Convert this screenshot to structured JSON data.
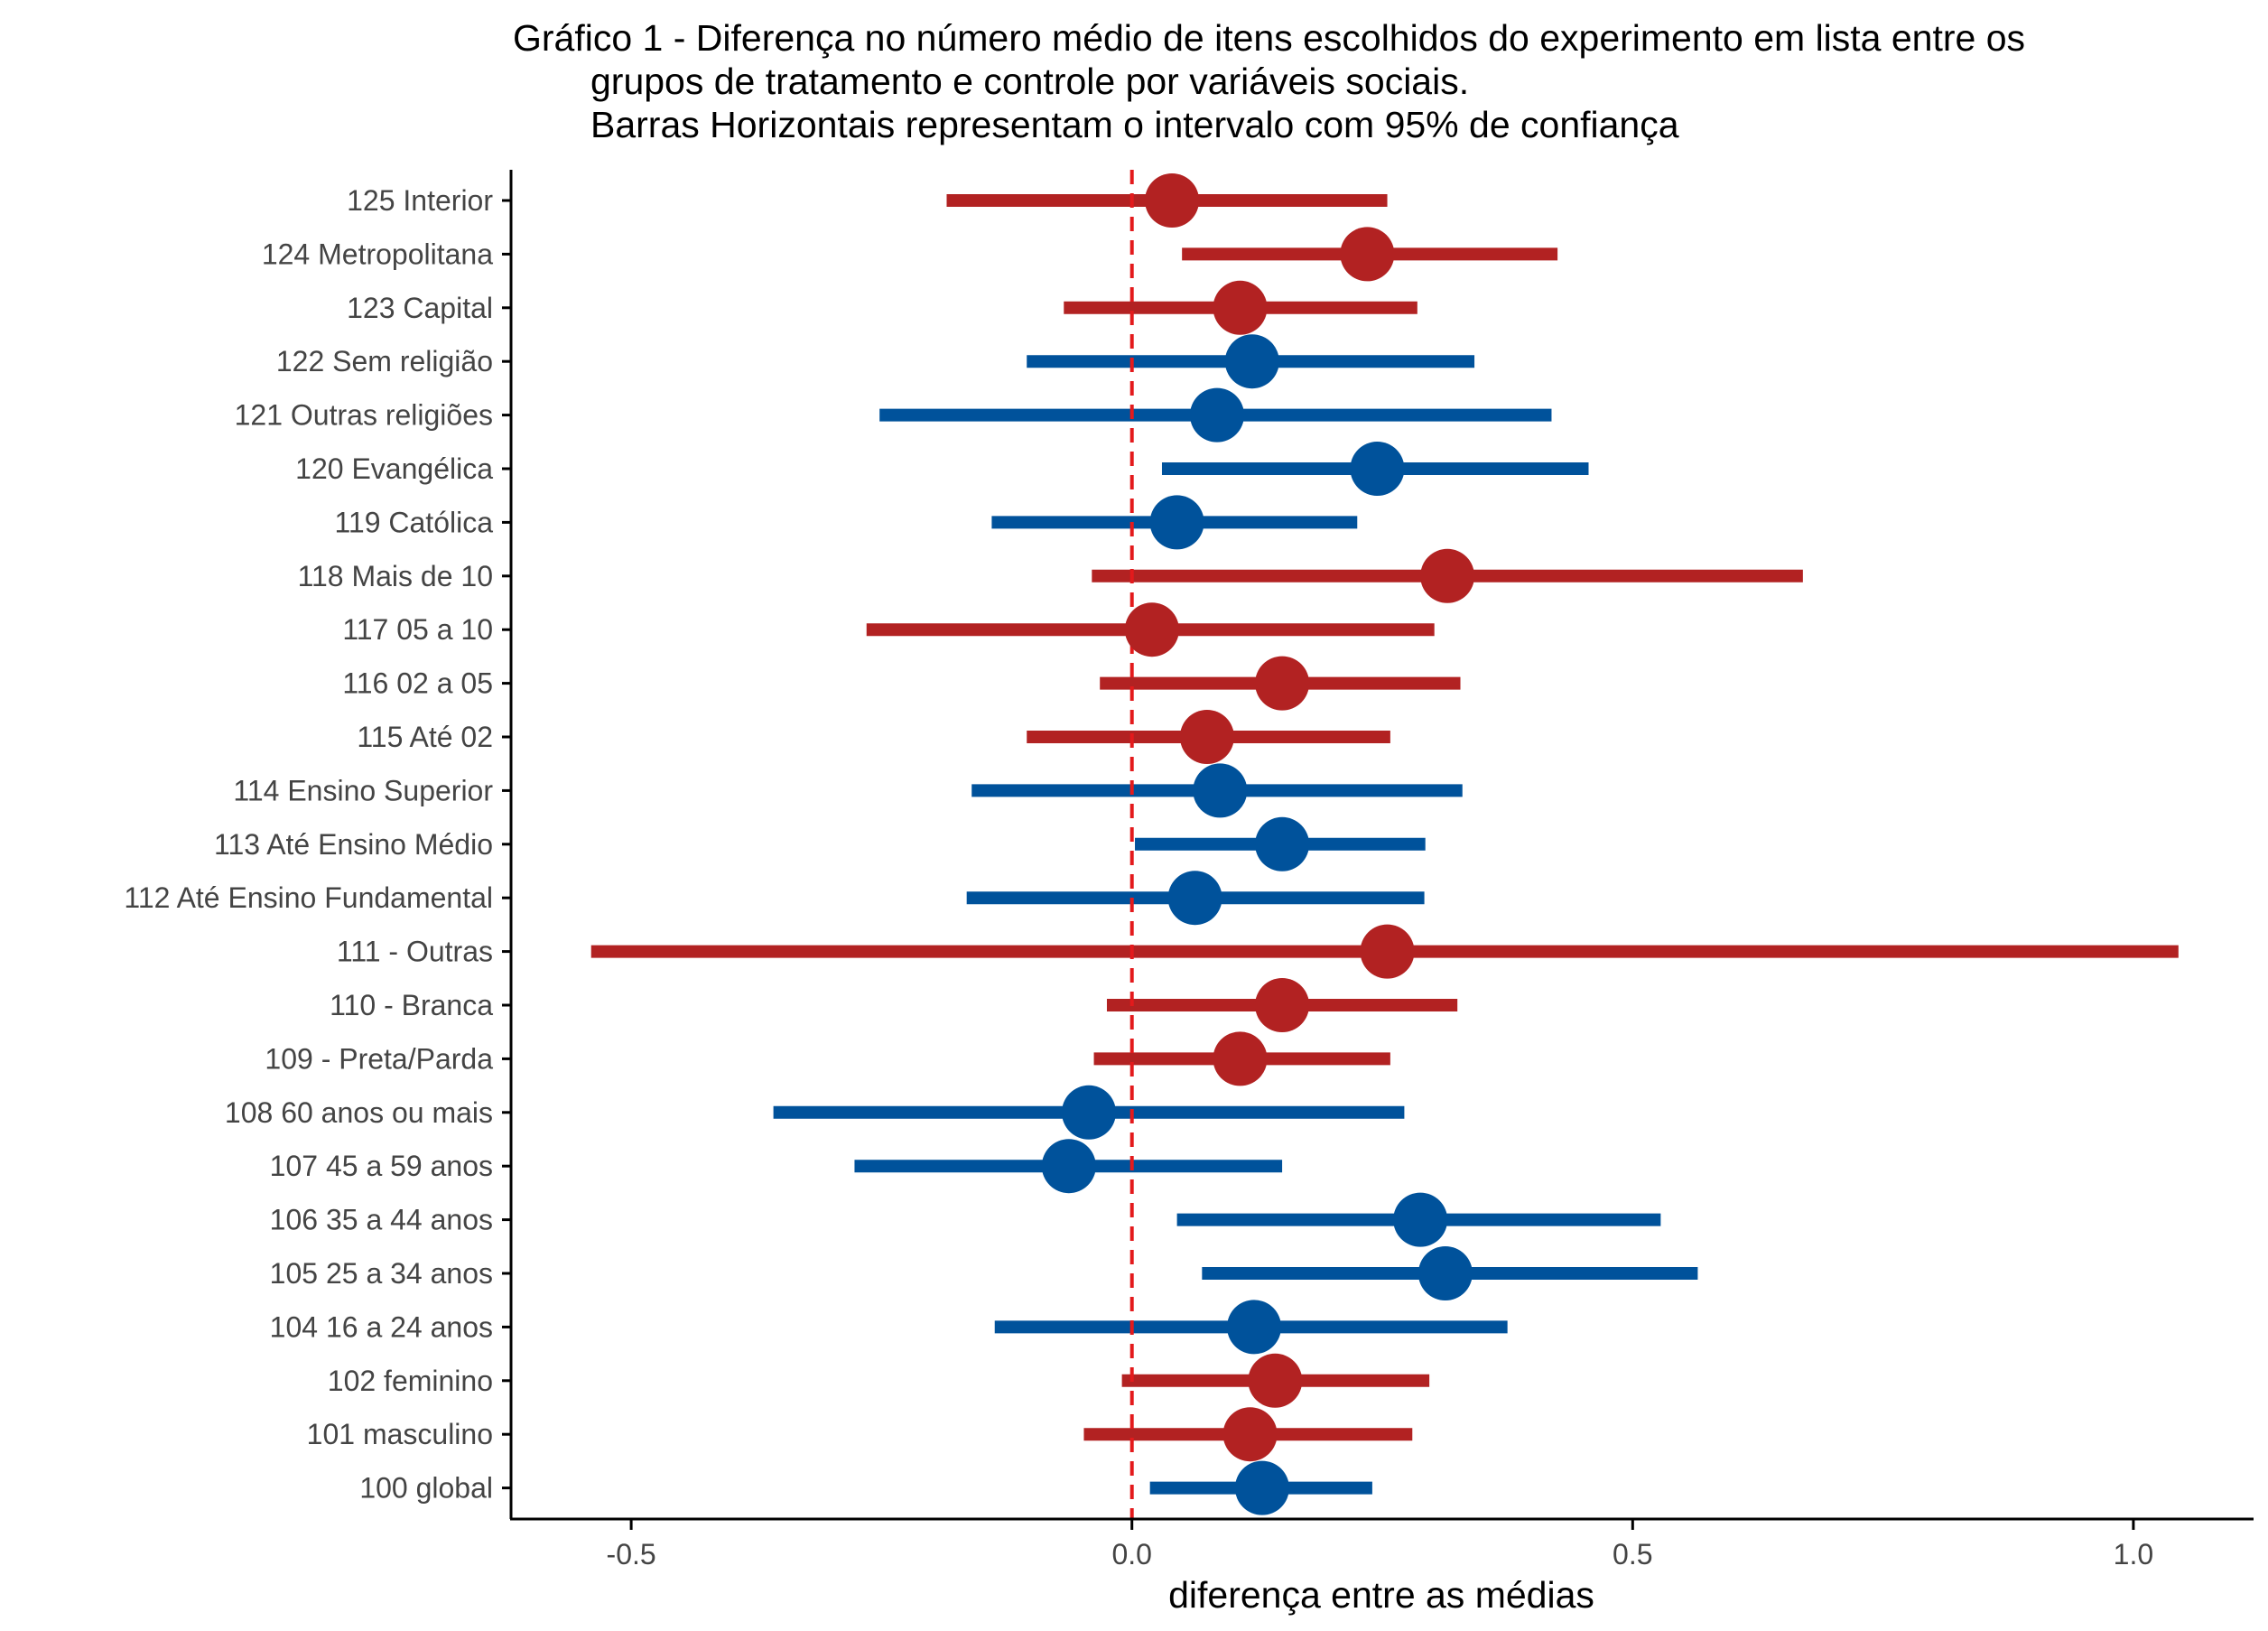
{
  "chart_data": {
    "type": "forest",
    "title": [
      "Gráfico 1 - Diferença no número médio de itens escolhidos do experimento em lista entre os",
      "grupos de tratamento e controle por variáveis sociais.",
      "Barras Horizontais representam o intervalo com 95% de confiança"
    ],
    "xlabel": "diferença entre as médias",
    "ylabel": "",
    "xlim": [
      -0.62,
      1.12
    ],
    "xticks": [
      -0.5,
      0.0,
      0.5,
      1.0
    ],
    "xtick_labels": [
      "-0.5",
      "0.0",
      "0.5",
      "1.0"
    ],
    "reference_line": {
      "x": 0,
      "style": "dashed",
      "color": "#e31a1c"
    },
    "grid": false,
    "legend": "none",
    "colors": {
      "red": "#b22222",
      "blue": "#00529b"
    },
    "rows": [
      {
        "label": "125 Interior",
        "estimate": 0.04,
        "lower": -0.185,
        "upper": 0.255,
        "color": "red"
      },
      {
        "label": "124 Metropolitana",
        "estimate": 0.235,
        "lower": 0.05,
        "upper": 0.425,
        "color": "red"
      },
      {
        "label": "123 Capital",
        "estimate": 0.108,
        "lower": -0.068,
        "upper": 0.285,
        "color": "red"
      },
      {
        "label": "122 Sem religião",
        "estimate": 0.12,
        "lower": -0.105,
        "upper": 0.342,
        "color": "blue"
      },
      {
        "label": "121 Outras religiões",
        "estimate": 0.085,
        "lower": -0.252,
        "upper": 0.419,
        "color": "blue"
      },
      {
        "label": "120 Evangélica",
        "estimate": 0.245,
        "lower": 0.03,
        "upper": 0.456,
        "color": "blue"
      },
      {
        "label": "119 Católica",
        "estimate": 0.045,
        "lower": -0.14,
        "upper": 0.225,
        "color": "blue"
      },
      {
        "label": "118 Mais de 10",
        "estimate": 0.315,
        "lower": -0.04,
        "upper": 0.67,
        "color": "red"
      },
      {
        "label": "117 05 a 10",
        "estimate": 0.02,
        "lower": -0.265,
        "upper": 0.302,
        "color": "red"
      },
      {
        "label": "116 02 a 05",
        "estimate": 0.15,
        "lower": -0.032,
        "upper": 0.328,
        "color": "red"
      },
      {
        "label": "115 Até 02",
        "estimate": 0.075,
        "lower": -0.105,
        "upper": 0.258,
        "color": "red"
      },
      {
        "label": "114 Ensino Superior",
        "estimate": 0.088,
        "lower": -0.16,
        "upper": 0.33,
        "color": "blue"
      },
      {
        "label": "113 Até Ensino Médio",
        "estimate": 0.15,
        "lower": 0.003,
        "upper": 0.293,
        "color": "blue"
      },
      {
        "label": "112 Até Ensino Fundamental",
        "estimate": 0.063,
        "lower": -0.165,
        "upper": 0.292,
        "color": "blue"
      },
      {
        "label": "111 - Outras",
        "estimate": 0.255,
        "lower": -0.54,
        "upper": 1.045,
        "color": "red"
      },
      {
        "label": "110 - Branca",
        "estimate": 0.15,
        "lower": -0.025,
        "upper": 0.325,
        "color": "red"
      },
      {
        "label": "109 - Preta/Parda",
        "estimate": 0.108,
        "lower": -0.038,
        "upper": 0.258,
        "color": "red"
      },
      {
        "label": "108 60 anos ou mais",
        "estimate": -0.043,
        "lower": -0.358,
        "upper": 0.272,
        "color": "blue"
      },
      {
        "label": "107 45 a 59 anos",
        "estimate": -0.063,
        "lower": -0.277,
        "upper": 0.15,
        "color": "blue"
      },
      {
        "label": "106 35 a 44 anos",
        "estimate": 0.288,
        "lower": 0.045,
        "upper": 0.528,
        "color": "blue"
      },
      {
        "label": "105 25 a 34 anos",
        "estimate": 0.313,
        "lower": 0.07,
        "upper": 0.565,
        "color": "blue"
      },
      {
        "label": "104 16 a 24 anos",
        "estimate": 0.122,
        "lower": -0.137,
        "upper": 0.375,
        "color": "blue"
      },
      {
        "label": "102 feminino",
        "estimate": 0.143,
        "lower": -0.01,
        "upper": 0.297,
        "color": "red"
      },
      {
        "label": "101 masculino",
        "estimate": 0.118,
        "lower": -0.048,
        "upper": 0.28,
        "color": "red"
      },
      {
        "label": "100 global",
        "estimate": 0.13,
        "lower": 0.018,
        "upper": 0.24,
        "color": "blue"
      }
    ]
  }
}
